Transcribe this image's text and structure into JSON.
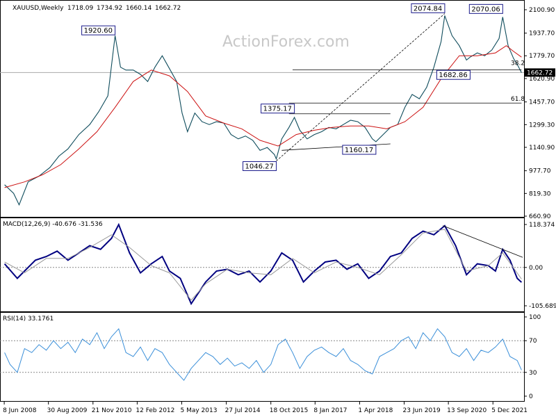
{
  "chart_data": {
    "type": "line",
    "title": "XAUUSD,Weekly",
    "ohlc": {
      "open": "1718.09",
      "high": "1734.92",
      "low": "1660.14",
      "close": "1662.72"
    },
    "watermark": "ActionForex.com",
    "price_pane": {
      "y_ticks": [
        "2100.90",
        "1937.70",
        "1779.70",
        "1620.90",
        "1457.70",
        "1299.30",
        "1140.90",
        "977.70",
        "819.30",
        "660.90"
      ],
      "y_tick_values": [
        2100.9,
        1937.7,
        1779.7,
        1620.9,
        1457.7,
        1299.3,
        1140.9,
        977.7,
        819.3,
        660.9
      ],
      "ylim": [
        660.9,
        2100.9
      ],
      "current_price": "1662.72",
      "current_price_value": 1662.72,
      "annotations": [
        {
          "text": "1920.60",
          "x": 2011.5,
          "y": 1920.6
        },
        {
          "text": "1046.27",
          "x": 2015.95,
          "y": 1046.27
        },
        {
          "text": "1375.17",
          "x": 2016.45,
          "y": 1375.17
        },
        {
          "text": "1160.17",
          "x": 2018.7,
          "y": 1160.17
        },
        {
          "text": "2074.84",
          "x": 2020.6,
          "y": 2074.84
        },
        {
          "text": "2070.06",
          "x": 2022.2,
          "y": 2070.06
        },
        {
          "text": "1682.86",
          "x": 2021.3,
          "y": 1682.86
        }
      ],
      "fib_levels": [
        {
          "label": "61.8",
          "value": 1450
        },
        {
          "label": "38.2",
          "value": 1700
        }
      ],
      "series": [
        {
          "name": "price",
          "color": "#0f4c5c",
          "x": [
            2008.45,
            2008.7,
            2008.85,
            2009.1,
            2009.4,
            2009.7,
            2009.95,
            2010.2,
            2010.5,
            2010.8,
            2011.05,
            2011.3,
            2011.5,
            2011.65,
            2011.8,
            2012.0,
            2012.2,
            2012.4,
            2012.6,
            2012.8,
            2013.0,
            2013.2,
            2013.35,
            2013.5,
            2013.7,
            2013.9,
            2014.1,
            2014.3,
            2014.5,
            2014.7,
            2014.9,
            2015.1,
            2015.3,
            2015.5,
            2015.7,
            2015.9,
            2015.95,
            2016.1,
            2016.3,
            2016.45,
            2016.6,
            2016.8,
            2017.0,
            2017.2,
            2017.4,
            2017.6,
            2017.8,
            2018.0,
            2018.2,
            2018.4,
            2018.6,
            2018.7,
            2018.9,
            2019.1,
            2019.3,
            2019.5,
            2019.7,
            2019.9,
            2020.1,
            2020.3,
            2020.5,
            2020.6,
            2020.8,
            2021.0,
            2021.2,
            2021.3,
            2021.5,
            2021.7,
            2021.9,
            2022.1,
            2022.2,
            2022.35,
            2022.5,
            2022.6,
            2022.72
          ],
          "y": [
            880,
            820,
            740,
            900,
            940,
            1000,
            1080,
            1130,
            1230,
            1300,
            1390,
            1500,
            1920,
            1700,
            1680,
            1680,
            1650,
            1600,
            1700,
            1780,
            1690,
            1600,
            1380,
            1250,
            1380,
            1320,
            1300,
            1320,
            1310,
            1230,
            1200,
            1220,
            1190,
            1120,
            1140,
            1090,
            1060,
            1200,
            1280,
            1350,
            1260,
            1200,
            1230,
            1250,
            1280,
            1270,
            1300,
            1330,
            1320,
            1280,
            1200,
            1180,
            1230,
            1280,
            1300,
            1420,
            1510,
            1480,
            1560,
            1700,
            1880,
            2060,
            1920,
            1850,
            1750,
            1770,
            1800,
            1780,
            1820,
            1900,
            2050,
            1850,
            1760,
            1720,
            1662
          ]
        },
        {
          "name": "moving-average",
          "color": "#cc1111",
          "x": [
            2008.45,
            2009.0,
            2009.5,
            2010.0,
            2010.5,
            2011.0,
            2011.5,
            2012.0,
            2012.5,
            2013.0,
            2013.5,
            2014.0,
            2014.5,
            2015.0,
            2015.5,
            2016.0,
            2016.5,
            2017.0,
            2017.5,
            2018.0,
            2018.5,
            2019.0,
            2019.5,
            2020.0,
            2020.5,
            2021.0,
            2021.5,
            2022.0,
            2022.3,
            2022.5,
            2022.72
          ],
          "y": [
            860,
            900,
            950,
            1020,
            1130,
            1250,
            1420,
            1600,
            1680,
            1640,
            1530,
            1360,
            1310,
            1270,
            1190,
            1150,
            1230,
            1260,
            1280,
            1290,
            1290,
            1270,
            1320,
            1420,
            1620,
            1780,
            1780,
            1800,
            1850,
            1810,
            1770
          ]
        }
      ]
    },
    "macd_pane": {
      "title": "MACD(12,26,9) -40.676 -31.536",
      "y_ticks": [
        "118.374",
        "0.00",
        "-105.689"
      ],
      "y_tick_values": [
        118.374,
        0,
        -105.689
      ],
      "ylim": [
        -105.689,
        118.374
      ],
      "series": [
        {
          "name": "macd",
          "color": "#000080",
          "x": [
            2008.45,
            2008.8,
            2009.0,
            2009.3,
            2009.6,
            2009.9,
            2010.2,
            2010.5,
            2010.8,
            2011.1,
            2011.4,
            2011.6,
            2011.9,
            2012.2,
            2012.5,
            2012.8,
            2013.0,
            2013.3,
            2013.6,
            2013.8,
            2014.0,
            2014.3,
            2014.6,
            2014.9,
            2015.2,
            2015.5,
            2015.8,
            2016.1,
            2016.4,
            2016.7,
            2017.0,
            2017.3,
            2017.6,
            2017.9,
            2018.2,
            2018.5,
            2018.8,
            2019.1,
            2019.4,
            2019.7,
            2020.0,
            2020.3,
            2020.6,
            2020.9,
            2021.2,
            2021.5,
            2021.8,
            2022.0,
            2022.2,
            2022.4,
            2022.6,
            2022.72
          ],
          "y": [
            10,
            -30,
            -10,
            20,
            30,
            45,
            20,
            40,
            60,
            50,
            80,
            118,
            40,
            -15,
            10,
            30,
            -10,
            -30,
            -100,
            -70,
            -40,
            -10,
            -5,
            -20,
            -10,
            -40,
            -10,
            40,
            20,
            -40,
            -10,
            15,
            20,
            -5,
            10,
            -30,
            -10,
            30,
            40,
            80,
            100,
            90,
            115,
            60,
            -20,
            10,
            5,
            -10,
            50,
            20,
            -30,
            -41
          ]
        },
        {
          "name": "signal",
          "color": "#999999",
          "x": [
            2008.45,
            2009.0,
            2009.6,
            2010.2,
            2010.8,
            2011.4,
            2011.9,
            2012.5,
            2013.0,
            2013.6,
            2014.0,
            2014.6,
            2015.2,
            2015.8,
            2016.4,
            2017.0,
            2017.6,
            2018.2,
            2018.8,
            2019.4,
            2020.0,
            2020.6,
            2021.2,
            2021.8,
            2022.2,
            2022.72
          ],
          "y": [
            15,
            -15,
            25,
            25,
            55,
            90,
            55,
            5,
            -15,
            -90,
            -45,
            -5,
            -15,
            -20,
            25,
            -15,
            15,
            0,
            -20,
            35,
            95,
            105,
            -10,
            5,
            40,
            -32
          ]
        }
      ]
    },
    "rsi_pane": {
      "title": "RSI(14) 33.1761",
      "y_ticks": [
        "100",
        "70",
        "30",
        "0"
      ],
      "y_tick_values": [
        100,
        70,
        30,
        0
      ],
      "ylim": [
        0,
        100
      ],
      "series": [
        {
          "name": "rsi",
          "color": "#3a8fd9",
          "x": [
            2008.45,
            2008.6,
            2008.8,
            2009.0,
            2009.2,
            2009.4,
            2009.6,
            2009.8,
            2010.0,
            2010.2,
            2010.4,
            2010.6,
            2010.8,
            2011.0,
            2011.2,
            2011.4,
            2011.6,
            2011.8,
            2012.0,
            2012.2,
            2012.4,
            2012.6,
            2012.8,
            2013.0,
            2013.2,
            2013.4,
            2013.6,
            2013.8,
            2014.0,
            2014.2,
            2014.4,
            2014.6,
            2014.8,
            2015.0,
            2015.2,
            2015.4,
            2015.6,
            2015.8,
            2016.0,
            2016.2,
            2016.4,
            2016.6,
            2016.8,
            2017.0,
            2017.2,
            2017.4,
            2017.6,
            2017.8,
            2018.0,
            2018.2,
            2018.4,
            2018.6,
            2018.8,
            2019.0,
            2019.2,
            2019.4,
            2019.6,
            2019.8,
            2020.0,
            2020.2,
            2020.4,
            2020.6,
            2020.8,
            2021.0,
            2021.2,
            2021.4,
            2021.6,
            2021.8,
            2022.0,
            2022.2,
            2022.4,
            2022.6,
            2022.72
          ],
          "y": [
            55,
            40,
            30,
            60,
            55,
            65,
            58,
            70,
            60,
            68,
            55,
            72,
            65,
            80,
            60,
            75,
            85,
            55,
            50,
            62,
            45,
            60,
            55,
            40,
            30,
            20,
            35,
            45,
            55,
            50,
            40,
            48,
            38,
            42,
            35,
            45,
            30,
            40,
            65,
            72,
            55,
            35,
            50,
            58,
            62,
            55,
            50,
            60,
            45,
            40,
            32,
            28,
            50,
            55,
            60,
            70,
            75,
            60,
            80,
            70,
            85,
            75,
            55,
            50,
            60,
            45,
            58,
            55,
            62,
            72,
            50,
            45,
            33
          ]
        }
      ]
    },
    "x_ticks": [
      "8 Jun 2008",
      "30 Aug 2009",
      "21 Nov 2010",
      "12 Feb 2012",
      "5 May 2013",
      "27 Jul 2014",
      "18 Oct 2015",
      "8 Jan 2017",
      "1 Apr 2018",
      "23 Jun 2019",
      "13 Sep 2020",
      "5 Dec 2021"
    ],
    "x_tick_values": [
      2008.44,
      2009.66,
      2010.89,
      2012.11,
      2013.34,
      2014.57,
      2015.8,
      2017.02,
      2018.25,
      2019.48,
      2020.7,
      2021.93
    ],
    "xlim": [
      2008.4,
      2022.75
    ],
    "trendlines": [
      {
        "name": "resistance-1375",
        "x": [
          2016.3,
          2019.1
        ],
        "y": [
          1375,
          1375
        ]
      },
      {
        "name": "support-1160",
        "x": [
          2016.1,
          2019.1
        ],
        "y": [
          1120,
          1165
        ]
      },
      {
        "name": "channel-dashed",
        "x": [
          2015.95,
          2020.6
        ],
        "y": [
          1046,
          2074
        ]
      },
      {
        "name": "level-1682",
        "x": [
          2016.4,
          2022.72
        ],
        "y": [
          1682,
          1682
        ]
      },
      {
        "name": "level-1450",
        "x": [
          2016.3,
          2022.72
        ],
        "y": [
          1450,
          1450
        ]
      }
    ],
    "colors": {
      "price": "#0f4c5c",
      "ma": "#cc1111",
      "macd": "#000080",
      "rsi": "#3a8fd9"
    }
  }
}
